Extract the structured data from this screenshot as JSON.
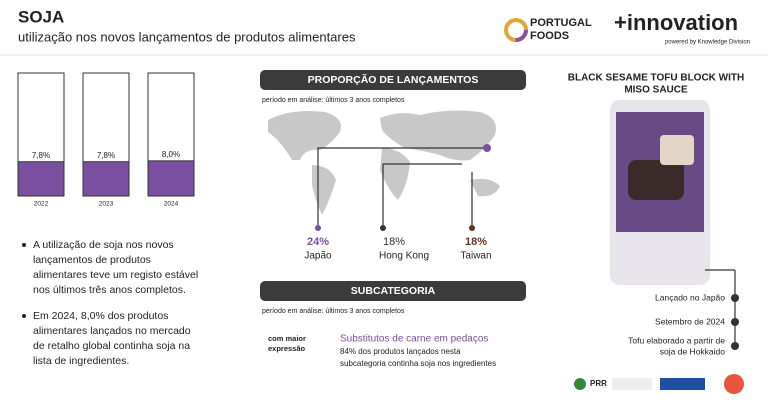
{
  "header": {
    "title": "SOJA",
    "subtitle": "utilização nos novos lançamentos de produtos alimentares",
    "logo1": [
      "PORTUGAL",
      "FOODS"
    ],
    "logo2": "+innovation",
    "logo2_sub": "powered by Knowledge Division"
  },
  "chart_data": {
    "type": "bar",
    "categories": [
      "2022",
      "2023",
      "2024"
    ],
    "values": [
      7.8,
      7.8,
      8.0
    ],
    "value_labels": [
      "7,8%",
      "7,8%",
      "8,0%"
    ],
    "color": "#7b4fa0",
    "ylim": [
      0,
      28
    ]
  },
  "bullets": [
    [
      "A utilização de soja nos novos",
      "lançamentos de produtos",
      "alimentares teve um registo estável",
      "nos últimos três anos completos."
    ],
    [
      "Em 2024, 8,0% dos produtos",
      "alimentares lançados no mercado",
      "de retalho global continha soja na",
      "lista de ingredientes."
    ]
  ],
  "proportion": {
    "title": "PROPORÇÃO DE LANÇAMENTOS",
    "period": "período em análise: últimos 3 anos completos",
    "items": [
      {
        "label": "24%",
        "country": "Japão"
      },
      {
        "label": "18%",
        "country": "Hong Kong"
      },
      {
        "label": "18%",
        "country": "Taiwan"
      }
    ]
  },
  "subcategory": {
    "title": "SUBCATEGORIA",
    "period": "período em análise: últimos 3 anos completos",
    "key": [
      "com maior",
      "expressão"
    ],
    "name": "Substitutos de carne em pedaços",
    "description": [
      "84% dos produtos lançados nesta",
      "subcategoria continha soja nos ingredientes"
    ]
  },
  "product": {
    "title": [
      "BLACK SESAME TOFU BLOCK WITH",
      "MISO SAUCE"
    ],
    "facts": [
      [
        "Lançado no Japão"
      ],
      [
        "Setembro de 2024"
      ],
      [
        "Tofu elaborado a partir de",
        "soja de Hokkaido"
      ]
    ]
  },
  "footer": {
    "prr": "PRR"
  }
}
